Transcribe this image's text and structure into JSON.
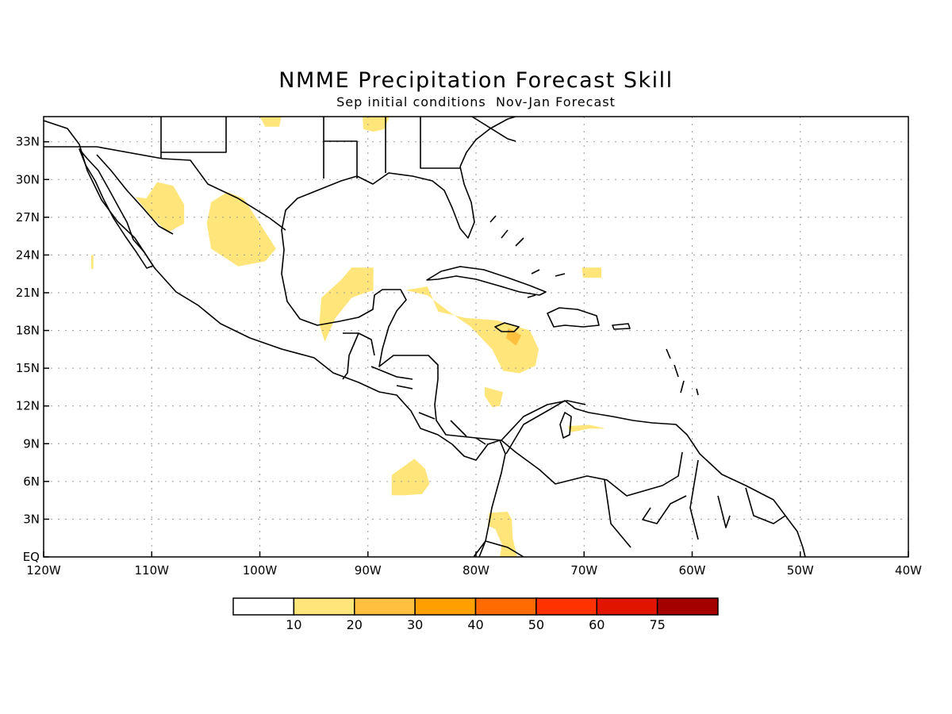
{
  "title": "NMME Precipitation Forecast Skill",
  "subtitle": "Sep initial conditions  Nov-Jan Forecast",
  "map": {
    "lon_range": [
      -120,
      -40
    ],
    "lat_range": [
      0,
      35
    ],
    "lon_ticks": [
      {
        "lon": -120,
        "label": "120W"
      },
      {
        "lon": -110,
        "label": "110W"
      },
      {
        "lon": -100,
        "label": "100W"
      },
      {
        "lon": -90,
        "label": "90W"
      },
      {
        "lon": -80,
        "label": "80W"
      },
      {
        "lon": -70,
        "label": "70W"
      },
      {
        "lon": -60,
        "label": "60W"
      },
      {
        "lon": -50,
        "label": "50W"
      },
      {
        "lon": -40,
        "label": "40W"
      }
    ],
    "lat_ticks": [
      {
        "lat": 0,
        "label": "EQ"
      },
      {
        "lat": 3,
        "label": "3N"
      },
      {
        "lat": 6,
        "label": "6N"
      },
      {
        "lat": 9,
        "label": "9N"
      },
      {
        "lat": 12,
        "label": "12N"
      },
      {
        "lat": 15,
        "label": "15N"
      },
      {
        "lat": 18,
        "label": "18N"
      },
      {
        "lat": 21,
        "label": "21N"
      },
      {
        "lat": 24,
        "label": "24N"
      },
      {
        "lat": 27,
        "label": "27N"
      },
      {
        "lat": 30,
        "label": "30N"
      },
      {
        "lat": 33,
        "label": "33N"
      }
    ],
    "grid": true,
    "skill_regions": [
      {
        "level": "10-20",
        "poly": [
          [
            -110.5,
            28.5
          ],
          [
            -109.5,
            29.8
          ],
          [
            -108,
            29.5
          ],
          [
            -107,
            28
          ],
          [
            -107,
            26.5
          ],
          [
            -108.5,
            25.8
          ],
          [
            -110,
            27
          ],
          [
            -111.5,
            28.6
          ]
        ]
      },
      {
        "level": "10-20",
        "poly": [
          [
            -104.5,
            28.2
          ],
          [
            -103,
            29
          ],
          [
            -101.5,
            28.5
          ],
          [
            -100,
            26.5
          ],
          [
            -98.5,
            24.5
          ],
          [
            -99.5,
            23.5
          ],
          [
            -102,
            23.1
          ],
          [
            -104.5,
            24.5
          ],
          [
            -104.9,
            26.5
          ]
        ]
      },
      {
        "level": "10-20",
        "poly": [
          [
            -101.5,
            35
          ],
          [
            -100,
            35
          ],
          [
            -99.5,
            34.2
          ],
          [
            -98.2,
            34.2
          ],
          [
            -98,
            35
          ]
        ]
      },
      {
        "level": "10-20",
        "poly": [
          [
            -90.5,
            35
          ],
          [
            -88,
            35
          ],
          [
            -88.5,
            34
          ],
          [
            -89.5,
            33.8
          ],
          [
            -90.4,
            34
          ]
        ]
      },
      {
        "level": "10-20",
        "poly": [
          [
            -91.5,
            23
          ],
          [
            -89.5,
            23
          ],
          [
            -89.5,
            21.2
          ],
          [
            -91.5,
            20.6
          ],
          [
            -93,
            19
          ],
          [
            -94,
            17.1
          ],
          [
            -94.5,
            18.5
          ],
          [
            -94.3,
            20.6
          ],
          [
            -92.5,
            22
          ]
        ]
      },
      {
        "level": "10-20",
        "poly": [
          [
            -86.5,
            21.2
          ],
          [
            -84.5,
            21.5
          ],
          [
            -83.5,
            19.5
          ],
          [
            -81,
            19
          ],
          [
            -78,
            18.8
          ],
          [
            -75,
            18
          ],
          [
            -74.2,
            16.5
          ],
          [
            -74.5,
            15.2
          ],
          [
            -76,
            14.6
          ],
          [
            -77.5,
            14.8
          ],
          [
            -78.5,
            16.5
          ],
          [
            -80.5,
            18.3
          ],
          [
            -82.5,
            19.5
          ],
          [
            -84.5,
            20.8
          ]
        ]
      },
      {
        "level": "10-20",
        "poly": [
          [
            -79.2,
            13.5
          ],
          [
            -77.5,
            13.1
          ],
          [
            -77.8,
            12
          ],
          [
            -78.5,
            11.9
          ],
          [
            -79.2,
            12.8
          ]
        ]
      },
      {
        "level": "10-20",
        "poly": [
          [
            -87.8,
            6.5
          ],
          [
            -85.7,
            7.8
          ],
          [
            -84.7,
            7
          ],
          [
            -84.3,
            5.8
          ],
          [
            -85,
            5
          ],
          [
            -86.5,
            4.9
          ],
          [
            -87.8,
            4.9
          ]
        ]
      },
      {
        "level": "10-20",
        "poly": [
          [
            -78.8,
            3.5
          ],
          [
            -77.1,
            3.6
          ],
          [
            -76.7,
            3
          ],
          [
            -76.6,
            1.5
          ],
          [
            -76.2,
            0
          ],
          [
            -77.8,
            0
          ],
          [
            -77.6,
            1
          ],
          [
            -78.2,
            2.2
          ],
          [
            -78.9,
            2.5
          ]
        ]
      },
      {
        "level": "10-20",
        "poly": [
          [
            -70.2,
            23
          ],
          [
            -68.4,
            23
          ],
          [
            -68.4,
            22.2
          ],
          [
            -70.1,
            22.2
          ]
        ]
      },
      {
        "level": "10-20",
        "poly": [
          [
            -71.5,
            10.4
          ],
          [
            -69.5,
            10.5
          ],
          [
            -68,
            10.2
          ],
          [
            -69.5,
            10.2
          ],
          [
            -71.3,
            9.9
          ]
        ]
      },
      {
        "level": "10-20",
        "poly": [
          [
            -115.6,
            24
          ],
          [
            -115.4,
            24
          ],
          [
            -115.4,
            22.9
          ],
          [
            -115.6,
            22.9
          ]
        ]
      },
      {
        "level": "20-30",
        "poly": [
          [
            -77,
            18.2
          ],
          [
            -75.8,
            17.6
          ],
          [
            -76.3,
            16.8
          ],
          [
            -77.2,
            17.4
          ]
        ]
      }
    ]
  },
  "colorbar": {
    "colors": [
      "#ffffff",
      "#ffe57a",
      "#ffc040",
      "#ffa000",
      "#ff6b00",
      "#ff3200",
      "#e11400",
      "#a50000"
    ],
    "labels": [
      "10",
      "20",
      "30",
      "40",
      "50",
      "60",
      "75"
    ]
  }
}
